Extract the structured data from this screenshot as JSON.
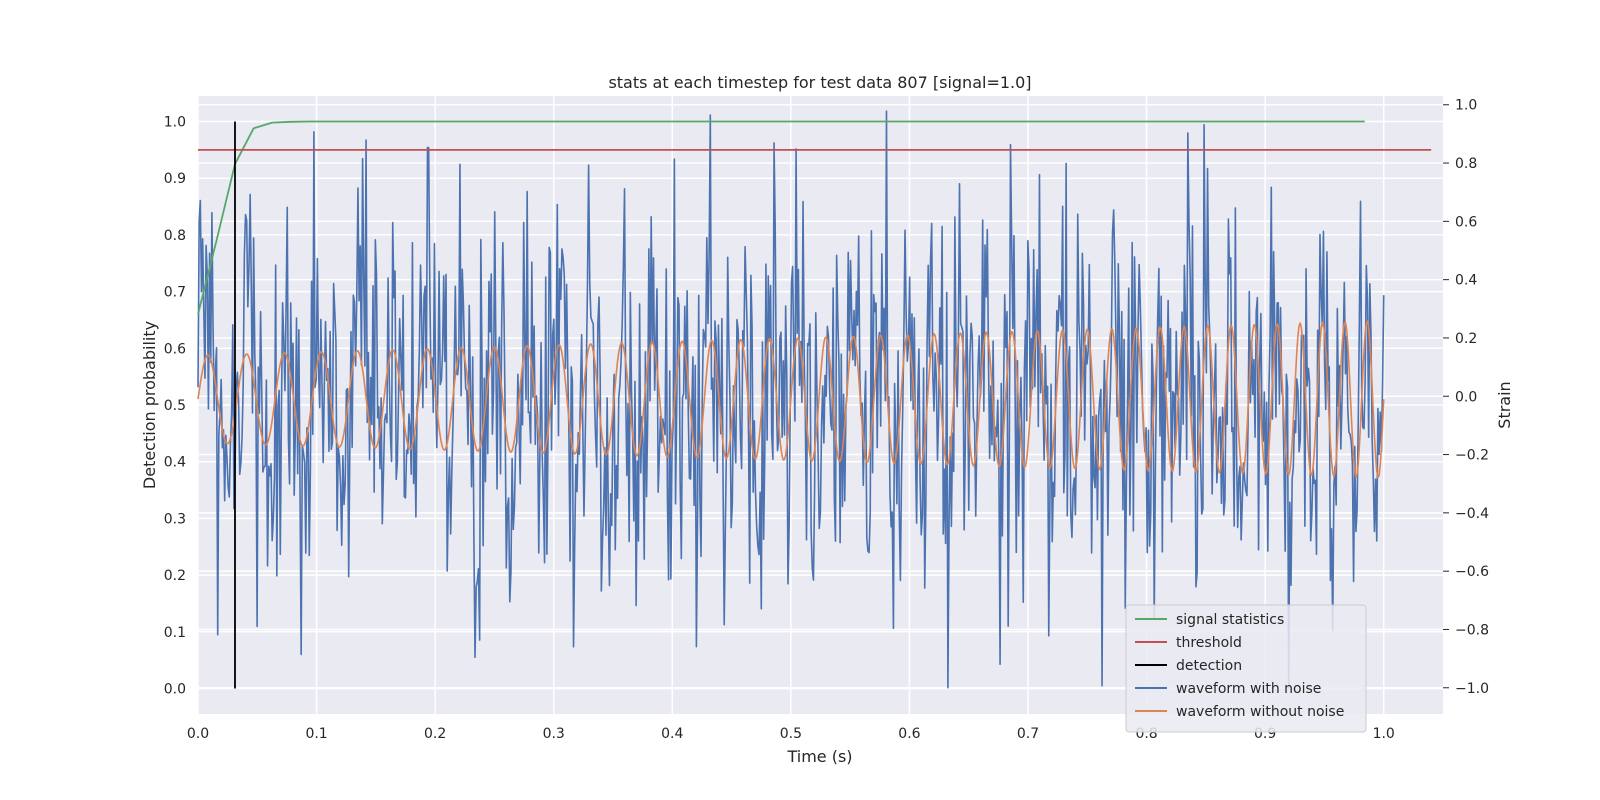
{
  "chart_data": {
    "type": "line",
    "title": "stats at each timestep for test data 807 [signal=1.0]",
    "xlabel": "Time (s)",
    "ylabel": "Detection probability",
    "ylabel_right": "Strain",
    "xlim": [
      0.0,
      1.05
    ],
    "ylim": [
      -0.045,
      1.045
    ],
    "ylim_right": [
      -1.09,
      1.03
    ],
    "xticks": [
      "0.0",
      "0.1",
      "0.2",
      "0.3",
      "0.4",
      "0.5",
      "0.6",
      "0.7",
      "0.8",
      "0.9",
      "1.0"
    ],
    "yticks": [
      "0.0",
      "0.1",
      "0.2",
      "0.3",
      "0.4",
      "0.5",
      "0.6",
      "0.7",
      "0.8",
      "0.9",
      "1.0"
    ],
    "yticks_right": [
      "-1.0",
      "-0.8",
      "-0.6",
      "-0.4",
      "-0.2",
      "0.0",
      "0.2",
      "0.4",
      "0.6",
      "0.8",
      "1.0"
    ],
    "grid": true,
    "legend_position": "lower-right",
    "series": [
      {
        "name": "signal statistics",
        "axis": "left",
        "color": "#55a868",
        "x": [
          0.0,
          0.0156,
          0.0312,
          0.0469,
          0.0625,
          0.0781,
          0.0938,
          0.25,
          0.5,
          0.75,
          0.984
        ],
        "y": [
          0.66,
          0.79,
          0.925,
          0.988,
          0.998,
          0.9995,
          1.0,
          1.0,
          1.0,
          1.0,
          1.0
        ]
      },
      {
        "name": "threshold",
        "axis": "left",
        "color": "#c44e52",
        "x": [
          0.0,
          1.04
        ],
        "y": [
          0.95,
          0.95
        ]
      },
      {
        "name": "detection",
        "axis": "left",
        "color": "#000000",
        "x": [
          0.0312,
          0.0312
        ],
        "y": [
          0.0,
          1.0
        ]
      },
      {
        "name": "waveform with noise",
        "axis": "right",
        "color": "#4c72b0",
        "generated": true,
        "x_range": [
          0.0,
          1.0
        ],
        "points": 1024,
        "amplitude_range": [
          -1.0,
          1.0
        ]
      },
      {
        "name": "waveform without noise",
        "axis": "right",
        "color": "#dd8452",
        "generated": true,
        "x_range": [
          0.0,
          1.0
        ],
        "points": 1024,
        "amplitude_range": [
          -0.3,
          0.27
        ]
      }
    ]
  }
}
